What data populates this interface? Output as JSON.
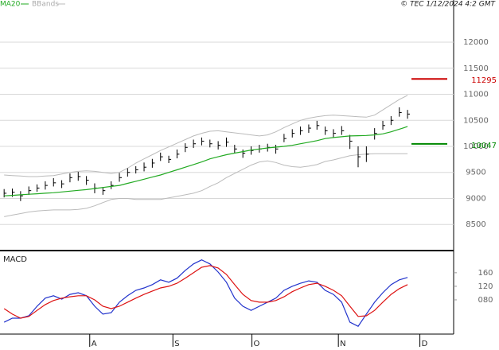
{
  "chart_data": [
    {
      "type": "ohlc",
      "annotation": "© TEC 1/12/2024 4:2 GMT",
      "xlim": [
        -0.5,
        54.6
      ],
      "xticks": [
        {
          "value": 10.4,
          "label": "A"
        },
        {
          "value": 20.5,
          "label": "S"
        },
        {
          "value": 30.1,
          "label": "O"
        },
        {
          "value": 40.6,
          "label": "N"
        },
        {
          "value": 50.5,
          "label": "D"
        }
      ],
      "ylim": [
        8030,
        12810
      ],
      "yticks": [
        8500,
        9000,
        9500,
        10000,
        10500,
        11000,
        11500,
        12000
      ],
      "grid": true,
      "bar_color": "#000000",
      "high": [
        9180,
        9190,
        9140,
        9230,
        9270,
        9330,
        9390,
        9350,
        9480,
        9510,
        9430,
        9290,
        9220,
        9330,
        9490,
        9580,
        9620,
        9690,
        9760,
        9880,
        9820,
        9940,
        10060,
        10130,
        10170,
        10130,
        10100,
        10170,
        10030,
        9940,
        10000,
        10030,
        10050,
        10030,
        10240,
        10330,
        10380,
        10420,
        10490,
        10380,
        10330,
        10390,
        10220,
        10000,
        10000,
        10350,
        10490,
        10580,
        10750,
        10700
      ],
      "low": [
        9020,
        9030,
        8950,
        9070,
        9130,
        9170,
        9230,
        9200,
        9310,
        9340,
        9260,
        9100,
        9070,
        9180,
        9320,
        9420,
        9480,
        9520,
        9590,
        9720,
        9680,
        9770,
        9890,
        9970,
        10020,
        9980,
        9940,
        9990,
        9870,
        9780,
        9840,
        9880,
        9900,
        9860,
        10080,
        10170,
        10220,
        10260,
        10320,
        10220,
        10160,
        10220,
        9950,
        9600,
        9700,
        10130,
        10320,
        10410,
        10570,
        10530
      ],
      "close": [
        9100,
        9120,
        9050,
        9150,
        9200,
        9250,
        9300,
        9280,
        9400,
        9420,
        9350,
        9200,
        9150,
        9250,
        9400,
        9500,
        9550,
        9600,
        9680,
        9800,
        9750,
        9850,
        9980,
        10050,
        10100,
        10050,
        10020,
        10080,
        9950,
        9870,
        9920,
        9950,
        9980,
        9950,
        10150,
        10250,
        10300,
        10350,
        10400,
        10300,
        10250,
        10300,
        10100,
        9800,
        9850,
        10250,
        10400,
        10500,
        10650,
        10620
      ],
      "series": [
        {
          "name": "MA20",
          "color": "#22aa22",
          "values": [
            9050,
            9060,
            9070,
            9080,
            9090,
            9100,
            9110,
            9125,
            9140,
            9155,
            9170,
            9190,
            9210,
            9230,
            9250,
            9290,
            9330,
            9370,
            9410,
            9450,
            9500,
            9550,
            9600,
            9650,
            9700,
            9760,
            9800,
            9840,
            9870,
            9900,
            9930,
            9950,
            9970,
            9985,
            10000,
            10020,
            10050,
            10080,
            10110,
            10150,
            10170,
            10185,
            10200,
            10205,
            10210,
            10220,
            10240,
            10280,
            10330,
            10380
          ]
        },
        {
          "name": "BBands",
          "color": "#bbbbbb",
          "values": [
            9450,
            9440,
            9430,
            9420,
            9420,
            9430,
            9440,
            9470,
            9500,
            9520,
            9530,
            9520,
            9500,
            9480,
            9500,
            9580,
            9680,
            9760,
            9840,
            9920,
            9990,
            10060,
            10130,
            10200,
            10250,
            10290,
            10300,
            10280,
            10260,
            10240,
            10220,
            10200,
            10220,
            10280,
            10360,
            10430,
            10500,
            10540,
            10570,
            10590,
            10600,
            10590,
            10580,
            10570,
            10560,
            10600,
            10700,
            10800,
            10900,
            10980
          ],
          "lower": [
            8650,
            8680,
            8710,
            8740,
            8760,
            8770,
            8780,
            8780,
            8780,
            8790,
            8810,
            8860,
            8920,
            8980,
            9000,
            9000,
            8980,
            8980,
            8980,
            8980,
            9010,
            9040,
            9070,
            9100,
            9150,
            9230,
            9300,
            9400,
            9480,
            9560,
            9640,
            9700,
            9720,
            9690,
            9640,
            9610,
            9600,
            9620,
            9650,
            9710,
            9740,
            9780,
            9820,
            9840,
            9850,
            9860,
            9860,
            9860,
            9860,
            9860
          ]
        }
      ],
      "levels": [
        {
          "value": 11295,
          "color": "#cc0000"
        },
        {
          "value": 10047,
          "color": "#008800"
        }
      ]
    },
    {
      "type": "line",
      "title": "MACD",
      "xlim": [
        -0.5,
        54.6
      ],
      "ylim": [
        -21,
        223
      ],
      "yticks": [
        {
          "value": 80,
          "label": "080"
        },
        120,
        160
      ],
      "series": [
        {
          "color": "#2233cc",
          "values": [
            14,
            26,
            26,
            33,
            61,
            85,
            92,
            82,
            96,
            101,
            92,
            61,
            38,
            42,
            73,
            92,
            108,
            115,
            125,
            139,
            132,
            144,
            167,
            186,
            198,
            186,
            162,
            132,
            85,
            61,
            49,
            61,
            73,
            85,
            108,
            120,
            129,
            136,
            132,
            108,
            96,
            73,
            14,
            2,
            38,
            73,
            101,
            125,
            139,
            146
          ]
        },
        {
          "color": "#dd1111",
          "values": [
            54,
            38,
            26,
            31,
            49,
            66,
            78,
            85,
            89,
            92,
            92,
            80,
            61,
            54,
            61,
            73,
            85,
            96,
            106,
            115,
            120,
            129,
            144,
            160,
            176,
            181,
            174,
            155,
            125,
            96,
            78,
            73,
            73,
            78,
            89,
            104,
            115,
            125,
            129,
            120,
            108,
            92,
            61,
            31,
            33,
            49,
            73,
            96,
            113,
            125
          ]
        }
      ]
    }
  ]
}
